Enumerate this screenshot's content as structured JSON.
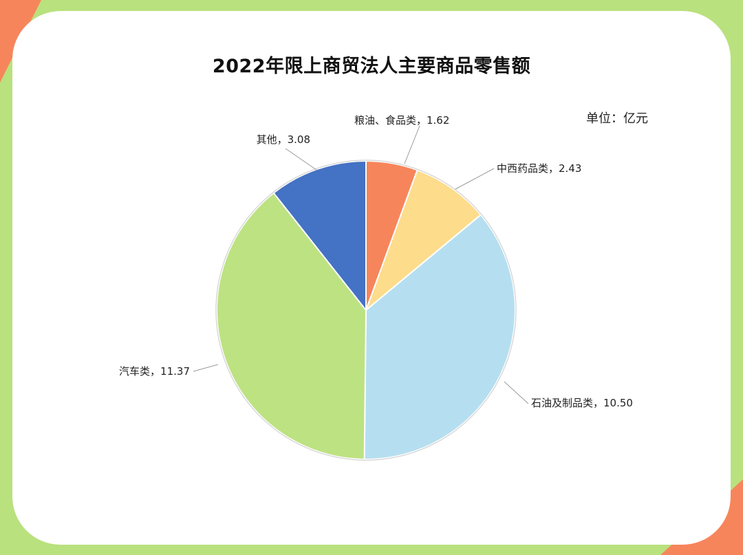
{
  "background": {
    "corner_color": "#f7855b",
    "frame_color": "#b9e17e"
  },
  "chart_data": {
    "type": "pie",
    "title": "2022年限上商贸法人主要商品零售额",
    "unit_label": "单位：亿元",
    "slices": [
      {
        "label": "粮油、食品类",
        "value": 1.62,
        "value_text": "1.62",
        "color": "#f7855b"
      },
      {
        "label": "中西药品类",
        "value": 2.43,
        "value_text": "2.43",
        "color": "#fddc8c"
      },
      {
        "label": "石油及制品类",
        "value": 10.5,
        "value_text": "10.50",
        "color": "#b5dff0"
      },
      {
        "label": "汽车类",
        "value": 11.37,
        "value_text": "11.37",
        "color": "#bde282"
      },
      {
        "label": "其他",
        "value": 3.08,
        "value_text": "3.08",
        "color": "#4472c4"
      }
    ]
  }
}
